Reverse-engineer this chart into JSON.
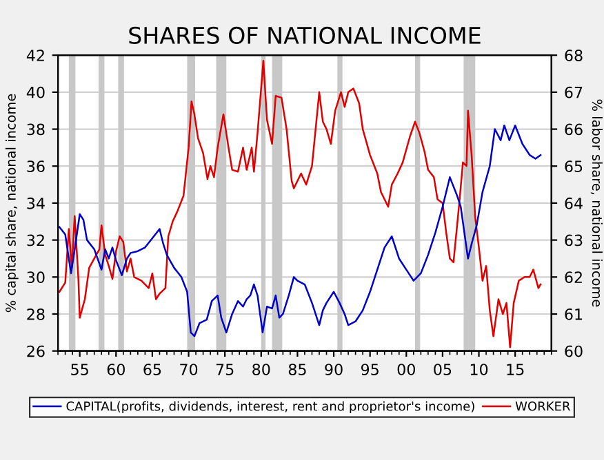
{
  "chart_data": {
    "type": "line",
    "title": "SHARES OF NATIONAL INCOME",
    "ylabel": "% capital share, national income",
    "y2label": "% labor share, national income",
    "xlim": [
      1952.0,
      2020.0
    ],
    "xticks": [
      {
        "value": 1955,
        "label": "55"
      },
      {
        "value": 1960,
        "label": "60"
      },
      {
        "value": 1965,
        "label": "65"
      },
      {
        "value": 1970,
        "label": "70"
      },
      {
        "value": 1975,
        "label": "75"
      },
      {
        "value": 1980,
        "label": "80"
      },
      {
        "value": 1985,
        "label": "85"
      },
      {
        "value": 1990,
        "label": "90"
      },
      {
        "value": 1995,
        "label": "95"
      },
      {
        "value": 2000,
        "label": "00"
      },
      {
        "value": 2005,
        "label": "05"
      },
      {
        "value": 2010,
        "label": "10"
      },
      {
        "value": 2015,
        "label": "15"
      }
    ],
    "ylim": [
      26,
      42
    ],
    "yticks": [
      26,
      28,
      30,
      32,
      34,
      36,
      38,
      40,
      42
    ],
    "y2lim": [
      60,
      68
    ],
    "y2ticks": [
      60,
      61,
      62,
      63,
      64,
      65,
      66,
      67,
      68
    ],
    "grid": "y",
    "legend": "bottom",
    "bands": [
      {
        "axis": "x",
        "from": 1953.5,
        "to": 1954.4,
        "color": "#c8c8c8"
      },
      {
        "axis": "x",
        "from": 1957.6,
        "to": 1958.4,
        "color": "#c8c8c8"
      },
      {
        "axis": "x",
        "from": 1960.3,
        "to": 1961.1,
        "color": "#c8c8c8"
      },
      {
        "axis": "x",
        "from": 1969.8,
        "to": 1970.9,
        "color": "#c8c8c8"
      },
      {
        "axis": "x",
        "from": 1973.8,
        "to": 1975.2,
        "color": "#c8c8c8"
      },
      {
        "axis": "x",
        "from": 1980.0,
        "to": 1980.6,
        "color": "#c8c8c8"
      },
      {
        "axis": "x",
        "from": 1981.5,
        "to": 1982.9,
        "color": "#c8c8c8"
      },
      {
        "axis": "x",
        "from": 1990.5,
        "to": 1991.2,
        "color": "#c8c8c8"
      },
      {
        "axis": "x",
        "from": 2001.2,
        "to": 2001.9,
        "color": "#c8c8c8"
      },
      {
        "axis": "x",
        "from": 2007.9,
        "to": 2009.5,
        "color": "#c8c8c8"
      }
    ],
    "series": [
      {
        "name": "CAPITAL(profits, dividends, interest, rent and proprietor's income)",
        "color": "#0000c8",
        "x": [
          1952.2,
          1953,
          1953.8,
          1954.3,
          1955,
          1955.5,
          1956,
          1957,
          1958,
          1958.5,
          1959,
          1959.5,
          1960,
          1960.8,
          1961.5,
          1962,
          1963,
          1964,
          1965,
          1966,
          1966.5,
          1967,
          1968,
          1969,
          1969.8,
          1970.3,
          1970.8,
          1971.5,
          1972.5,
          1973.2,
          1974,
          1974.5,
          1975.2,
          1976,
          1976.8,
          1977.5,
          1978,
          1978.5,
          1979,
          1979.5,
          1980.2,
          1980.8,
          1981.5,
          1982,
          1982.5,
          1983,
          1983.8,
          1984.5,
          1985,
          1986,
          1987,
          1988,
          1988.5,
          1989,
          1990,
          1990.8,
          1991.5,
          1992,
          1993,
          1994,
          1995,
          1996,
          1997,
          1998,
          1999,
          2000,
          2001,
          2002,
          2003,
          2004,
          2005,
          2006,
          2007,
          2007.5,
          2008.5,
          2009,
          2009.7,
          2010.5,
          2011.5,
          2012.2,
          2013,
          2013.5,
          2014.2,
          2015,
          2016,
          2017,
          2017.8,
          2018.5
        ],
        "values": [
          32.7,
          32.3,
          30.2,
          31.5,
          33.4,
          33.1,
          32.0,
          31.5,
          30.4,
          31.5,
          31.0,
          31.6,
          30.9,
          30.1,
          31.0,
          31.3,
          31.4,
          31.6,
          32.1,
          32.6,
          31.8,
          31.2,
          30.5,
          30.0,
          29.2,
          27.0,
          26.8,
          27.5,
          27.7,
          28.7,
          29.0,
          27.8,
          27.0,
          28.0,
          28.7,
          28.4,
          28.8,
          29.0,
          29.6,
          29.0,
          27.0,
          28.4,
          28.3,
          29.0,
          27.8,
          28.0,
          29.0,
          30.0,
          29.8,
          29.6,
          28.6,
          27.4,
          28.2,
          28.6,
          29.2,
          28.6,
          28.0,
          27.4,
          27.6,
          28.2,
          29.2,
          30.4,
          31.6,
          32.2,
          31.0,
          30.4,
          29.8,
          30.2,
          31.2,
          32.4,
          33.8,
          35.4,
          34.4,
          33.8,
          31.0,
          31.8,
          32.8,
          34.6,
          36.0,
          38.0,
          37.4,
          38.2,
          37.4,
          38.2,
          37.2,
          36.6,
          36.4,
          36.6
        ]
      },
      {
        "name": "WORKER",
        "color": "#e00000",
        "axis": "y2",
        "x": [
          1952.2,
          1953,
          1953.5,
          1953.9,
          1954.3,
          1954.8,
          1955,
          1955.7,
          1956.3,
          1957,
          1957.7,
          1958,
          1958.5,
          1959,
          1959.5,
          1960,
          1960.5,
          1961,
          1961.5,
          1962,
          1962.5,
          1963.5,
          1964.5,
          1965,
          1965.5,
          1966,
          1966.8,
          1967.2,
          1967.8,
          1968.5,
          1969.3,
          1970,
          1970.4,
          1970.8,
          1971.3,
          1972,
          1972.6,
          1973,
          1973.5,
          1974,
          1974.8,
          1975.5,
          1976,
          1976.8,
          1977.5,
          1978,
          1978.7,
          1979,
          1979.5,
          1980.3,
          1980.8,
          1981.5,
          1982,
          1982.8,
          1983.5,
          1984.2,
          1984.5,
          1985.5,
          1986.2,
          1987,
          1987.5,
          1988,
          1988.5,
          1989,
          1989.6,
          1990.2,
          1991,
          1991.5,
          1992,
          1992.7,
          1993.5,
          1994,
          1995,
          1996,
          1996.5,
          1997.5,
          1998,
          1998.8,
          1999.5,
          2000.5,
          2001.2,
          2001.8,
          2002.5,
          2003,
          2003.8,
          2004.3,
          2005,
          2005.5,
          2006,
          2006.5,
          2007.3,
          2007.8,
          2008.3,
          2008.5,
          2009,
          2009.5,
          2010,
          2010.5,
          2011,
          2011.5,
          2012,
          2012.7,
          2013.3,
          2013.8,
          2014.3,
          2014.8,
          2015.5,
          2016.3,
          2017,
          2017.5,
          2018.2,
          2018.5
        ],
        "values": [
          61.6,
          61.85,
          63.3,
          62.25,
          63.65,
          62.0,
          60.9,
          61.4,
          62.25,
          62.5,
          62.75,
          63.4,
          62.6,
          62.3,
          61.95,
          62.7,
          63.1,
          62.95,
          62.15,
          62.5,
          62.0,
          61.9,
          61.7,
          62.1,
          61.4,
          61.55,
          61.7,
          63.1,
          63.5,
          63.8,
          64.2,
          65.5,
          66.75,
          66.4,
          65.75,
          65.35,
          64.65,
          65.0,
          64.7,
          65.5,
          66.4,
          65.5,
          64.9,
          64.85,
          65.5,
          64.9,
          65.5,
          64.85,
          65.9,
          67.85,
          66.25,
          65.6,
          66.9,
          66.85,
          66.0,
          64.6,
          64.4,
          64.8,
          64.5,
          65.0,
          66.0,
          67.0,
          66.2,
          66.0,
          65.6,
          66.5,
          67.0,
          66.6,
          67.0,
          67.1,
          66.7,
          66.0,
          65.3,
          64.8,
          64.3,
          63.9,
          64.5,
          64.8,
          65.1,
          65.8,
          66.2,
          65.9,
          65.4,
          64.9,
          64.7,
          64.1,
          64.0,
          63.2,
          62.5,
          62.4,
          64.0,
          65.1,
          65.0,
          66.5,
          65.3,
          63.6,
          62.8,
          61.9,
          62.3,
          61.1,
          60.4,
          61.4,
          61.0,
          61.3,
          60.1,
          61.3,
          61.9,
          62.0,
          62.0,
          62.2,
          61.7,
          61.8
        ]
      }
    ]
  }
}
